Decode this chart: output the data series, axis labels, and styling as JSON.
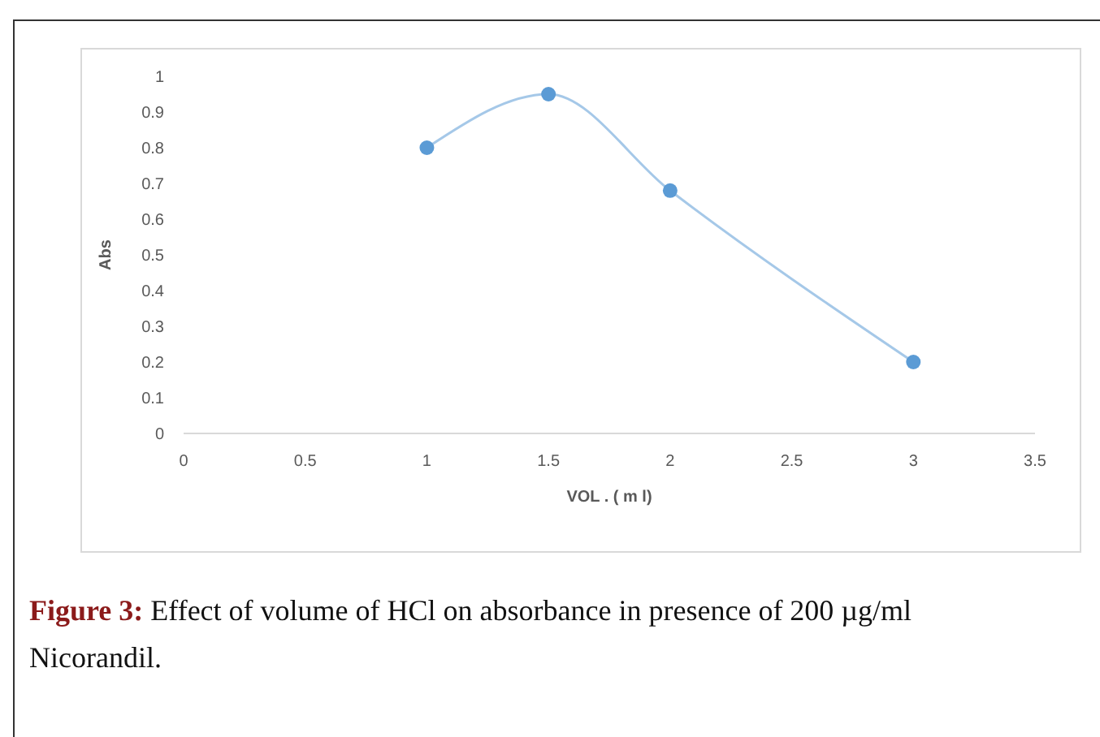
{
  "chart_data": {
    "type": "line",
    "xlabel": "VOL . ( m l)",
    "ylabel": "Abs",
    "x": [
      1,
      1.5,
      2,
      3
    ],
    "series": [
      {
        "color": "#5b9bd5",
        "values": [
          0.8,
          0.95,
          0.68,
          0.2
        ]
      }
    ],
    "xlim": [
      0,
      3.5
    ],
    "xticks": [
      0,
      0.5,
      1,
      1.5,
      2,
      2.5,
      3,
      3.5
    ],
    "ylim": [
      0,
      1
    ],
    "yticks": [
      0,
      0.1,
      0.2,
      0.3,
      0.4,
      0.5,
      0.6,
      0.7,
      0.8,
      0.9,
      1
    ],
    "marker": "circle",
    "grid": false,
    "annotations": [
      "Figure 3: Effect of volume of HCl on absorbance in presence of 200 µg/ml Nicorandil."
    ]
  }
}
